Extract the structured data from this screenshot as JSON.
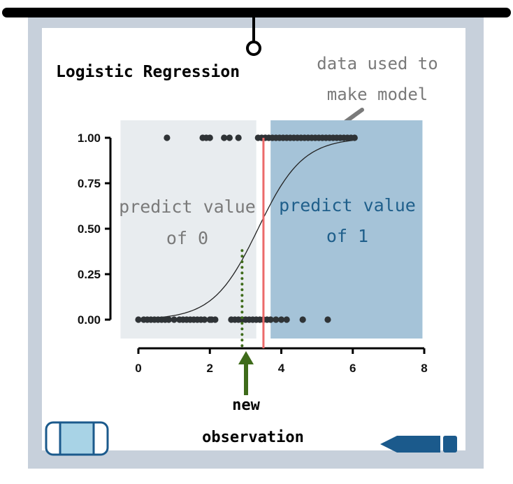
{
  "board": {
    "title": "Logistic Regression",
    "note_lines": [
      "data used to",
      "make model"
    ],
    "region_left_lines": [
      "predict value",
      "of 0"
    ],
    "region_right_lines": [
      "predict value",
      "of 1"
    ],
    "arrow_lines": [
      "new",
      "observation"
    ]
  },
  "colors": {
    "frame": "#c7d0db",
    "board": "#ffffff",
    "region_left": "#e8ecef",
    "region_right": "#a5c3d8",
    "text_grey": "#7a7a7a",
    "text_blue": "#1f5f8b",
    "points": "#2f3336",
    "threshold": "#ec6a6a",
    "observation": "#3e6b1a",
    "marker": "#1b5a8c",
    "eraser": "#a8d3e6"
  },
  "chart_data": {
    "type": "scatter",
    "xlim": [
      0,
      8
    ],
    "ylim": [
      0,
      1
    ],
    "x_ticks": [
      "0",
      "2",
      "4",
      "6",
      "8"
    ],
    "y_ticks": [
      "0.00",
      "0.25",
      "0.50",
      "0.75",
      "1.00"
    ],
    "threshold_x": 3.5,
    "new_observation": {
      "x": 3.0,
      "y": 0.38
    },
    "shaded_regions": [
      {
        "from": -0.5,
        "to": 3.3,
        "label": "predict value of 0"
      },
      {
        "from": 3.7,
        "to": 7.95,
        "label": "predict value of 1"
      }
    ],
    "curve": {
      "midpoint": 3.35,
      "slope": 1.6,
      "x_from": 0,
      "x_to": 6
    },
    "series": [
      {
        "y": 0,
        "x": [
          0,
          0.15,
          0.25,
          0.35,
          0.45,
          0.55,
          0.65,
          0.75,
          0.85,
          1.0,
          1.15,
          1.25,
          1.35,
          1.45,
          1.55,
          1.65,
          1.75,
          1.85,
          2.0,
          2.05,
          2.15,
          2.6,
          2.7,
          2.8,
          2.9,
          3.0,
          3.1,
          3.2,
          3.3,
          3.4,
          3.5,
          3.6,
          3.7,
          3.85,
          4.0,
          4.15,
          4.6,
          5.3
        ]
      },
      {
        "y": 1,
        "x": [
          0.8,
          1.8,
          1.9,
          2.0,
          2.4,
          2.55,
          2.8,
          3.35,
          3.45,
          3.55,
          3.65,
          3.75,
          3.85,
          3.95,
          4.05,
          4.15,
          4.25,
          4.35,
          4.45,
          4.55,
          4.65,
          4.75,
          4.85,
          4.95,
          5.05,
          5.15,
          5.25,
          5.35,
          5.45,
          5.55,
          5.65,
          5.75,
          5.85,
          5.95,
          6.05
        ]
      }
    ]
  }
}
